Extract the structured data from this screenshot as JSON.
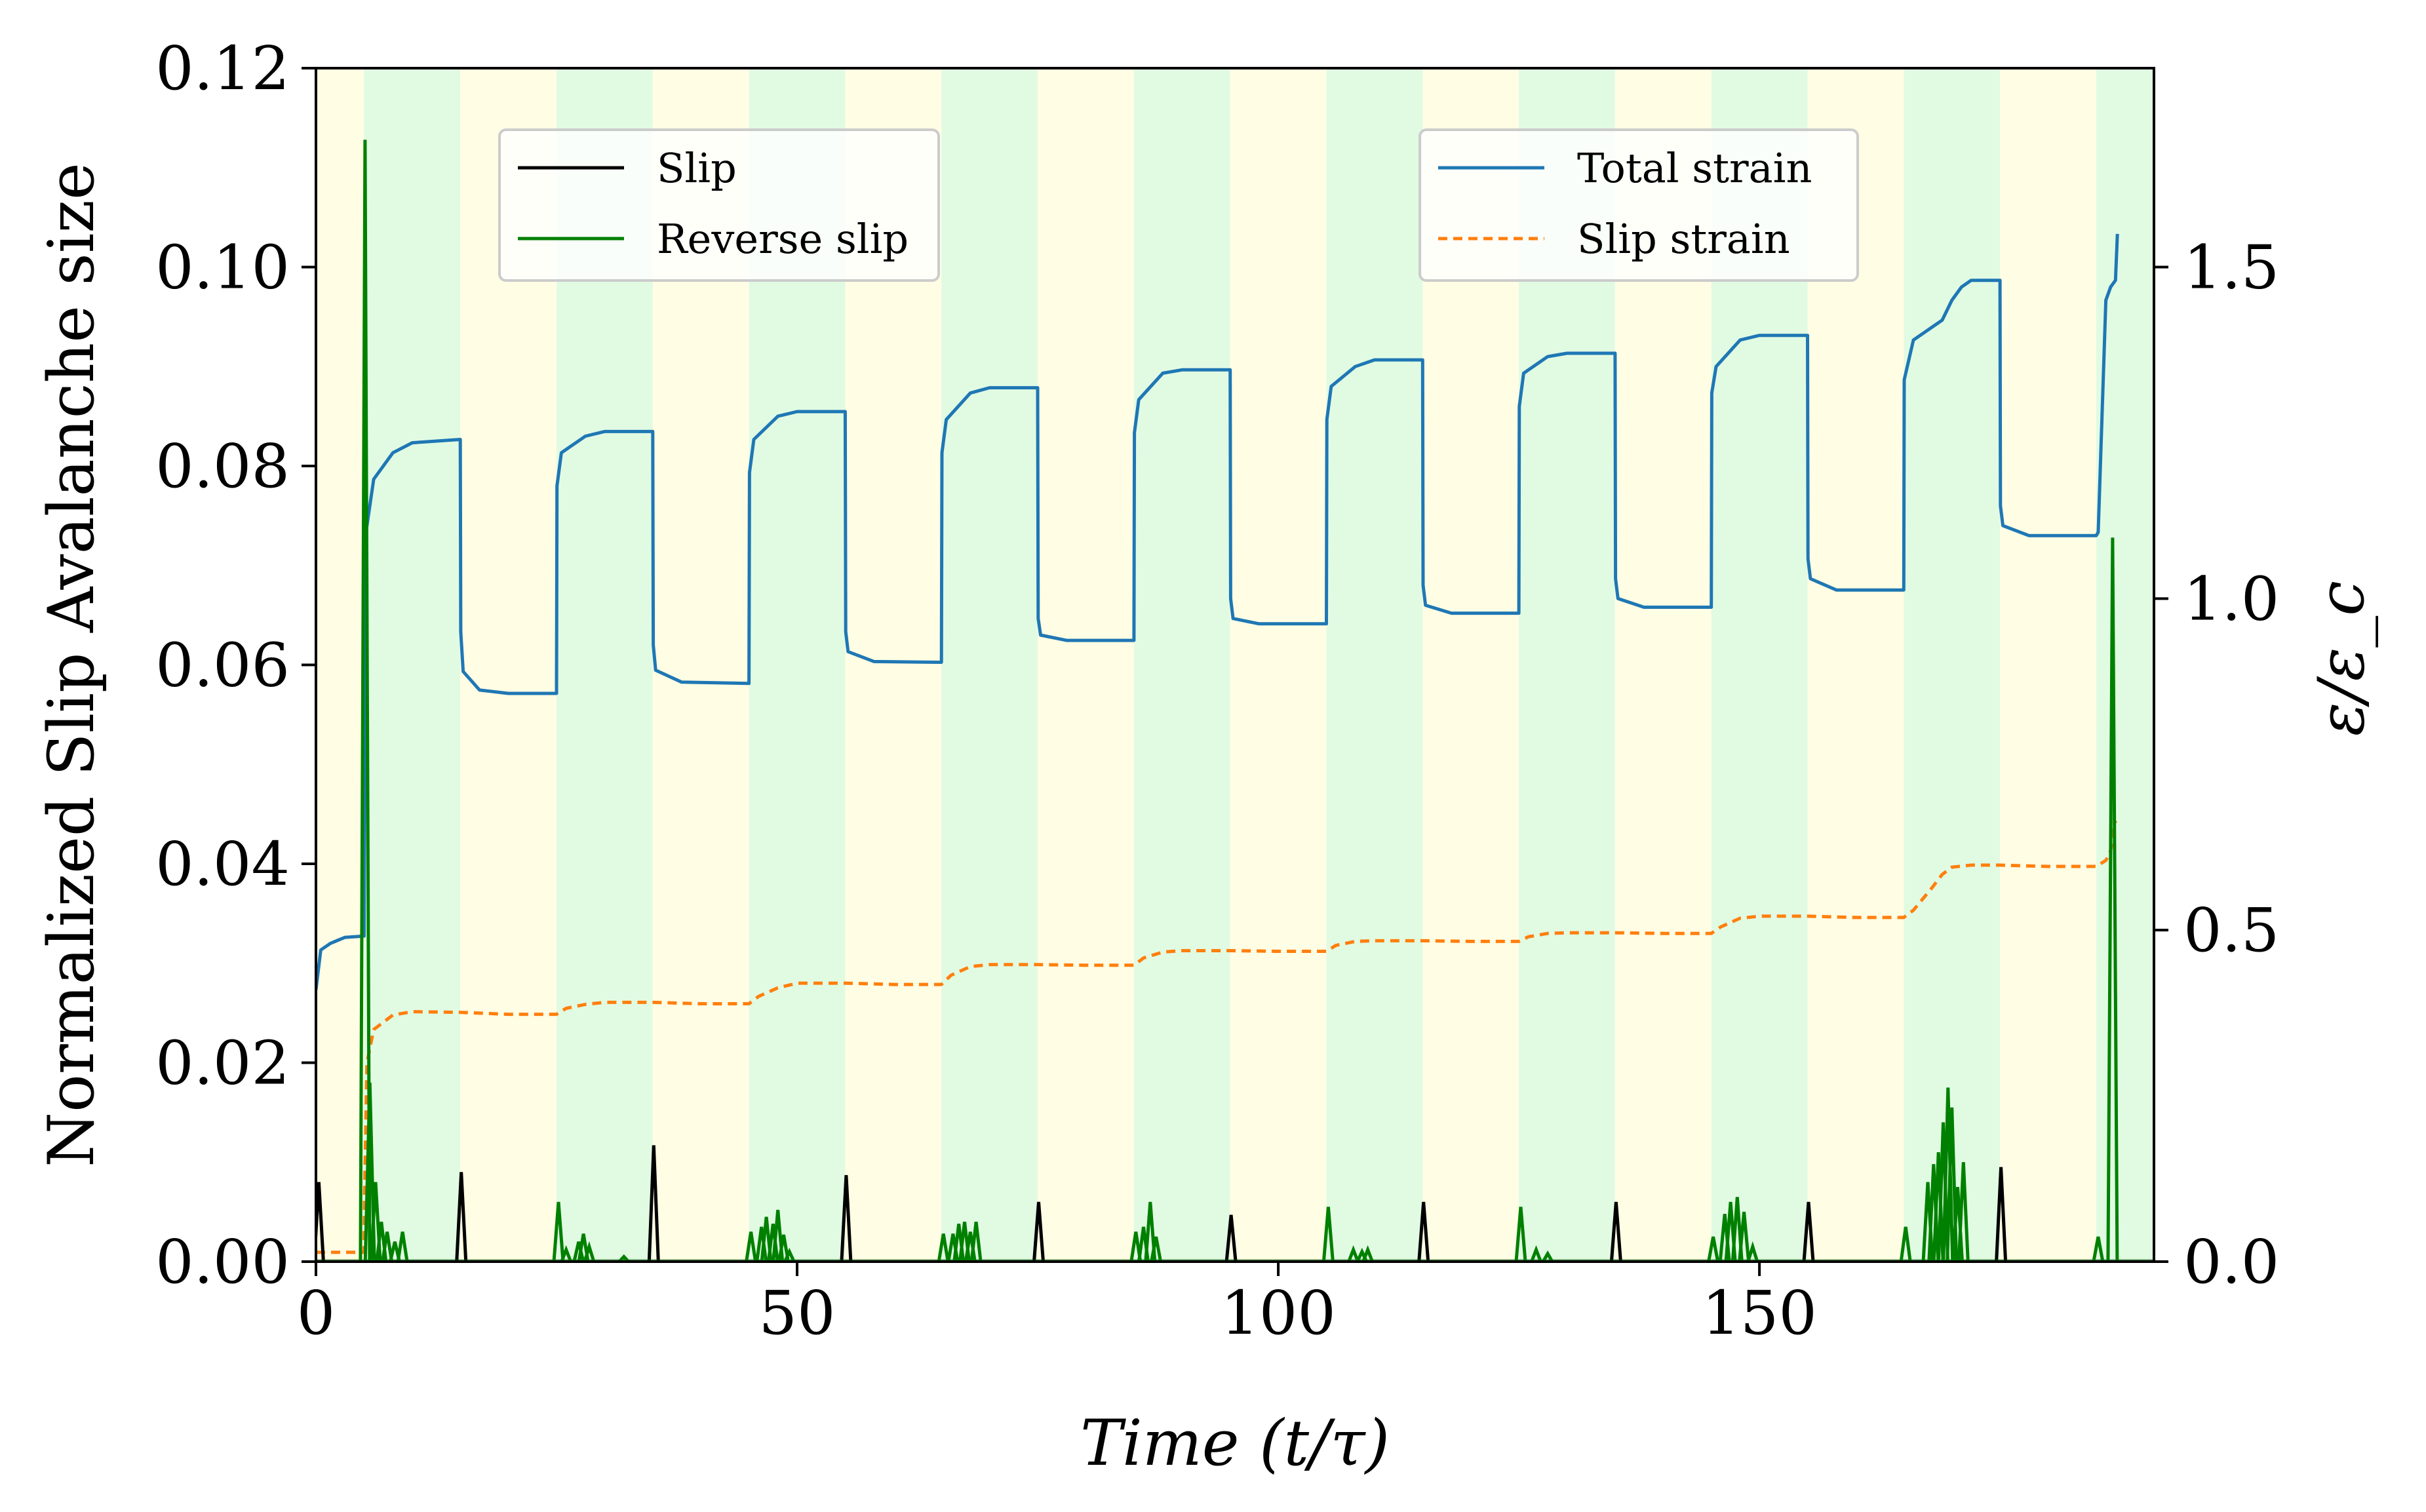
{
  "chart_data": {
    "type": "line",
    "xlabel": "Time (t/τ)",
    "ylabel_left": "Normalized Slip Avalanche size",
    "ylabel_right": "ε/ε_c",
    "xlim": [
      0,
      191
    ],
    "ylim_left": [
      0,
      0.12
    ],
    "ylim_right": [
      0,
      1.8
    ],
    "x_ticks": [
      0,
      50,
      100,
      150
    ],
    "x_tick_labels": [
      "0",
      "50",
      "100",
      "150"
    ],
    "y_left_ticks": [
      0,
      0.02,
      0.04,
      0.06,
      0.08,
      0.1,
      0.12
    ],
    "y_left_tick_labels": [
      "0.00",
      "0.02",
      "0.04",
      "0.06",
      "0.08",
      "0.10",
      "0.12"
    ],
    "y_right_ticks": [
      0,
      0.5,
      1.0,
      1.5
    ],
    "y_right_tick_labels": [
      "0.0",
      "0.5",
      "1.0",
      "1.5"
    ],
    "grid": false,
    "background_bands": {
      "boundaries": [
        0,
        5,
        15,
        25,
        35,
        45,
        55,
        65,
        75,
        85,
        95,
        105,
        115,
        125,
        135,
        145,
        155,
        165,
        175,
        185,
        191
      ],
      "colors": [
        "#fffde3",
        "#e1fbe3",
        "#fffde3",
        "#e1fbe3",
        "#fffde3",
        "#e1fbe3",
        "#fffde3",
        "#e1fbe3",
        "#fffde3",
        "#e1fbe3",
        "#fffde3",
        "#e1fbe3",
        "#fffde3",
        "#e1fbe3",
        "#fffde3",
        "#e1fbe3",
        "#fffde3",
        "#e1fbe3",
        "#fffde3",
        "#e1fbe3"
      ]
    },
    "legend_left": {
      "placement": "upper-left",
      "entries": [
        {
          "name": "Slip",
          "color": "#000000",
          "style": "solid"
        },
        {
          "name": "Reverse slip",
          "color": "#008000",
          "style": "solid"
        }
      ]
    },
    "legend_right": {
      "placement": "upper-right",
      "entries": [
        {
          "name": "Total strain",
          "color": "#1f77b4",
          "style": "solid"
        },
        {
          "name": "Slip strain",
          "color": "#ff7f0e",
          "style": "dashed"
        }
      ]
    },
    "series": [
      {
        "name": "Total strain",
        "axis": "right",
        "color": "#1f77b4",
        "style": "solid",
        "points": [
          [
            0,
            0.41
          ],
          [
            0.5,
            0.47
          ],
          [
            1.5,
            0.48
          ],
          [
            3,
            0.489
          ],
          [
            5,
            0.491
          ],
          [
            5.05,
            0.7
          ],
          [
            5.2,
            1.1
          ],
          [
            6,
            1.18
          ],
          [
            8,
            1.22
          ],
          [
            10,
            1.235
          ],
          [
            15,
            1.24
          ],
          [
            15.05,
            0.95
          ],
          [
            15.3,
            0.89
          ],
          [
            17,
            0.862
          ],
          [
            20,
            0.857
          ],
          [
            25,
            0.857
          ],
          [
            25.05,
            1.17
          ],
          [
            25.5,
            1.22
          ],
          [
            28,
            1.245
          ],
          [
            30,
            1.252
          ],
          [
            35,
            1.252
          ],
          [
            35.05,
            0.93
          ],
          [
            35.3,
            0.892
          ],
          [
            38,
            0.874
          ],
          [
            45,
            0.872
          ],
          [
            45.05,
            1.19
          ],
          [
            45.5,
            1.24
          ],
          [
            48,
            1.275
          ],
          [
            50,
            1.282
          ],
          [
            55,
            1.282
          ],
          [
            55.05,
            0.95
          ],
          [
            55.3,
            0.92
          ],
          [
            58,
            0.905
          ],
          [
            65,
            0.904
          ],
          [
            65.05,
            1.22
          ],
          [
            65.5,
            1.27
          ],
          [
            68,
            1.31
          ],
          [
            70,
            1.318
          ],
          [
            75,
            1.318
          ],
          [
            75.05,
            0.97
          ],
          [
            75.3,
            0.945
          ],
          [
            78,
            0.937
          ],
          [
            85,
            0.937
          ],
          [
            85.05,
            1.25
          ],
          [
            85.5,
            1.3
          ],
          [
            88,
            1.34
          ],
          [
            90,
            1.345
          ],
          [
            95,
            1.345
          ],
          [
            95.05,
            1.0
          ],
          [
            95.3,
            0.97
          ],
          [
            98,
            0.962
          ],
          [
            105,
            0.962
          ],
          [
            105.05,
            1.27
          ],
          [
            105.5,
            1.32
          ],
          [
            108,
            1.35
          ],
          [
            110,
            1.36
          ],
          [
            115,
            1.36
          ],
          [
            115.05,
            1.02
          ],
          [
            115.3,
            0.99
          ],
          [
            118,
            0.978
          ],
          [
            125,
            0.978
          ],
          [
            125.05,
            1.29
          ],
          [
            125.5,
            1.34
          ],
          [
            128,
            1.365
          ],
          [
            130,
            1.37
          ],
          [
            135,
            1.37
          ],
          [
            135.05,
            1.03
          ],
          [
            135.3,
            1.0
          ],
          [
            138,
            0.987
          ],
          [
            145,
            0.987
          ],
          [
            145.05,
            1.31
          ],
          [
            145.5,
            1.35
          ],
          [
            148,
            1.39
          ],
          [
            150,
            1.397
          ],
          [
            155,
            1.397
          ],
          [
            155.05,
            1.06
          ],
          [
            155.3,
            1.03
          ],
          [
            158,
            1.013
          ],
          [
            165,
            1.013
          ],
          [
            165.05,
            1.33
          ],
          [
            166,
            1.39
          ],
          [
            167,
            1.4
          ],
          [
            168,
            1.41
          ],
          [
            169,
            1.42
          ],
          [
            170,
            1.45
          ],
          [
            171,
            1.47
          ],
          [
            172,
            1.48
          ],
          [
            175,
            1.48
          ],
          [
            175.05,
            1.14
          ],
          [
            175.3,
            1.11
          ],
          [
            178,
            1.095
          ],
          [
            185,
            1.095
          ],
          [
            185.2,
            1.1
          ],
          [
            186,
            1.45
          ],
          [
            186.5,
            1.47
          ],
          [
            187,
            1.48
          ],
          [
            187.2,
            1.55
          ]
        ]
      },
      {
        "name": "Slip strain",
        "axis": "right",
        "color": "#ff7f0e",
        "style": "dashed",
        "points": [
          [
            0,
            0.014
          ],
          [
            5,
            0.014
          ],
          [
            5.05,
            0.1
          ],
          [
            5.3,
            0.3
          ],
          [
            6,
            0.35
          ],
          [
            8,
            0.372
          ],
          [
            10,
            0.377
          ],
          [
            15,
            0.376
          ],
          [
            20,
            0.373
          ],
          [
            25,
            0.373
          ],
          [
            26,
            0.382
          ],
          [
            28,
            0.388
          ],
          [
            30,
            0.391
          ],
          [
            35,
            0.391
          ],
          [
            40,
            0.389
          ],
          [
            45,
            0.389
          ],
          [
            46,
            0.4
          ],
          [
            48,
            0.413
          ],
          [
            50,
            0.42
          ],
          [
            55,
            0.42
          ],
          [
            60,
            0.418
          ],
          [
            65,
            0.418
          ],
          [
            66,
            0.432
          ],
          [
            68,
            0.445
          ],
          [
            70,
            0.448
          ],
          [
            75,
            0.448
          ],
          [
            80,
            0.447
          ],
          [
            85,
            0.447
          ],
          [
            86,
            0.458
          ],
          [
            88,
            0.467
          ],
          [
            90,
            0.469
          ],
          [
            95,
            0.469
          ],
          [
            100,
            0.468
          ],
          [
            105,
            0.468
          ],
          [
            106,
            0.477
          ],
          [
            108,
            0.483
          ],
          [
            110,
            0.484
          ],
          [
            115,
            0.484
          ],
          [
            120,
            0.483
          ],
          [
            125,
            0.483
          ],
          [
            126,
            0.49
          ],
          [
            128,
            0.495
          ],
          [
            130,
            0.496
          ],
          [
            135,
            0.496
          ],
          [
            140,
            0.495
          ],
          [
            145,
            0.495
          ],
          [
            146,
            0.505
          ],
          [
            148,
            0.518
          ],
          [
            150,
            0.521
          ],
          [
            155,
            0.521
          ],
          [
            160,
            0.519
          ],
          [
            165,
            0.519
          ],
          [
            166,
            0.53
          ],
          [
            168,
            0.565
          ],
          [
            169,
            0.584
          ],
          [
            170,
            0.595
          ],
          [
            172,
            0.598
          ],
          [
            175,
            0.598
          ],
          [
            180,
            0.596
          ],
          [
            185,
            0.596
          ],
          [
            186,
            0.605
          ],
          [
            186.5,
            0.62
          ],
          [
            187,
            0.665
          ]
        ]
      },
      {
        "name": "Slip",
        "axis": "left",
        "color": "#000000",
        "style": "solid",
        "spikes": [
          [
            0.3,
            0.008
          ],
          [
            15.1,
            0.009
          ],
          [
            35.1,
            0.0117
          ],
          [
            55.1,
            0.0087
          ],
          [
            75.1,
            0.006
          ],
          [
            95.1,
            0.0047
          ],
          [
            115.1,
            0.006
          ],
          [
            135.1,
            0.006
          ],
          [
            155.1,
            0.006
          ],
          [
            175.1,
            0.0095
          ]
        ]
      },
      {
        "name": "Reverse slip",
        "axis": "left",
        "color": "#008000",
        "style": "solid",
        "spikes": [
          [
            5.1,
            0.1128
          ],
          [
            5.6,
            0.018
          ],
          [
            6.2,
            0.008
          ],
          [
            6.8,
            0.004
          ],
          [
            7.4,
            0.003
          ],
          [
            8.2,
            0.002
          ],
          [
            9.0,
            0.003
          ],
          [
            25.2,
            0.006
          ],
          [
            26.0,
            0.0012
          ],
          [
            27.3,
            0.002
          ],
          [
            27.8,
            0.0028
          ],
          [
            28.4,
            0.0015
          ],
          [
            32.0,
            0.0005
          ],
          [
            45.2,
            0.003
          ],
          [
            46.3,
            0.0035
          ],
          [
            46.8,
            0.0045
          ],
          [
            47.5,
            0.0038
          ],
          [
            48.0,
            0.0052
          ],
          [
            48.6,
            0.0027
          ],
          [
            49.2,
            0.001
          ],
          [
            65.2,
            0.0028
          ],
          [
            66.2,
            0.0028
          ],
          [
            66.8,
            0.0038
          ],
          [
            67.4,
            0.004
          ],
          [
            68.0,
            0.003
          ],
          [
            68.6,
            0.004
          ],
          [
            85.2,
            0.003
          ],
          [
            86.0,
            0.0035
          ],
          [
            86.7,
            0.006
          ],
          [
            87.3,
            0.0025
          ],
          [
            105.2,
            0.0055
          ],
          [
            107.8,
            0.0012
          ],
          [
            108.7,
            0.001
          ],
          [
            109.3,
            0.0012
          ],
          [
            125.2,
            0.0055
          ],
          [
            126.8,
            0.0012
          ],
          [
            128.0,
            0.0008
          ],
          [
            145.2,
            0.0025
          ],
          [
            146.4,
            0.0048
          ],
          [
            147.0,
            0.006
          ],
          [
            147.7,
            0.0065
          ],
          [
            148.4,
            0.005
          ],
          [
            149.3,
            0.0015
          ],
          [
            165.2,
            0.0035
          ],
          [
            167.5,
            0.008
          ],
          [
            168.1,
            0.0098
          ],
          [
            168.6,
            0.011
          ],
          [
            169.1,
            0.014
          ],
          [
            169.6,
            0.0175
          ],
          [
            170.0,
            0.0155
          ],
          [
            170.6,
            0.0075
          ],
          [
            171.2,
            0.01
          ],
          [
            185.2,
            0.0025
          ],
          [
            186.7,
            0.0728
          ]
        ]
      }
    ]
  }
}
